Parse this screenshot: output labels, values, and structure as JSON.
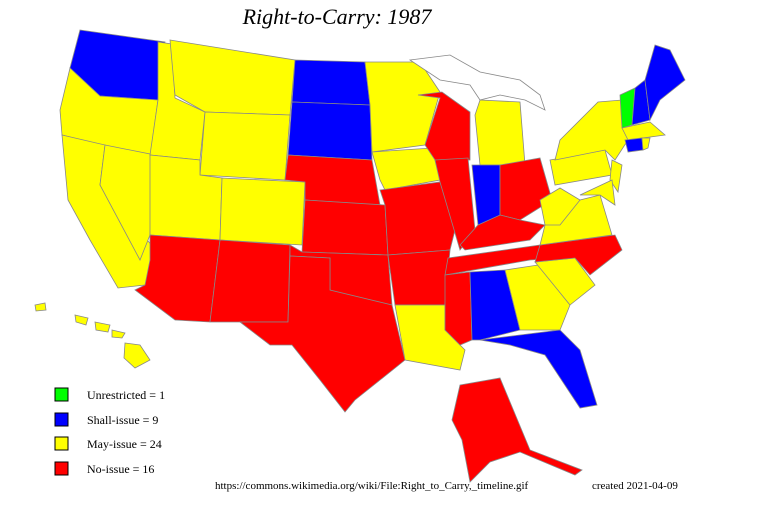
{
  "title": "Right-to-Carry: 1987",
  "legend": [
    {
      "label": "Unrestricted = 1",
      "color": "#00ff00"
    },
    {
      "label": "Shall-issue = 9",
      "color": "#0000ff"
    },
    {
      "label": "May-issue = 24",
      "color": "#ffff00"
    },
    {
      "label": "No-issue = 16",
      "color": "#ff0000"
    }
  ],
  "source": "https://commons.wikimedia.org/wiki/File:Right_to_Carry,_timeline.gif",
  "created": "created 2021-04-09"
}
